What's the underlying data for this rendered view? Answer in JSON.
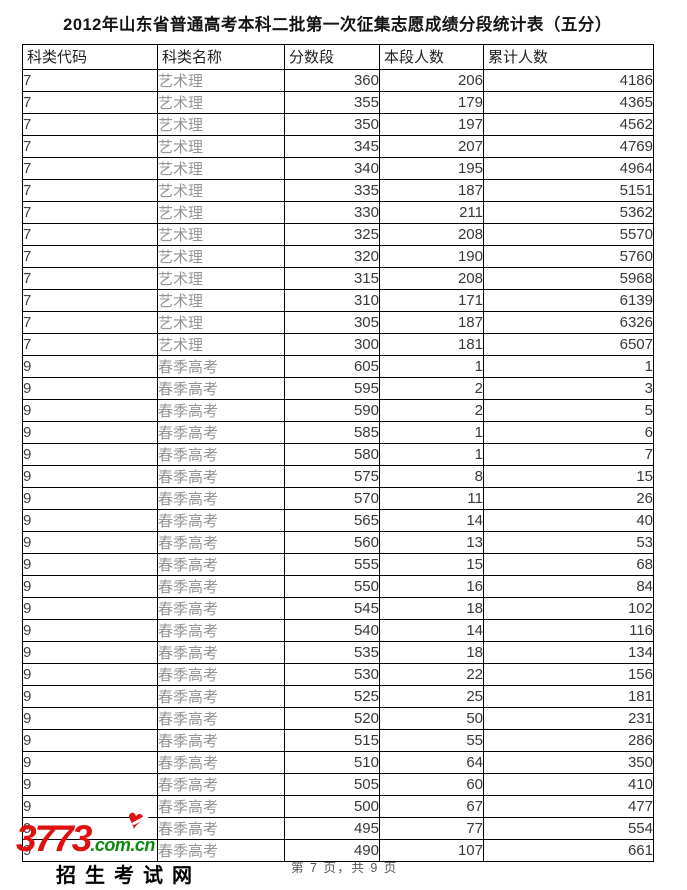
{
  "title": "2012年山东省普通高考本科二批第一次征集志愿成绩分段统计表（五分）",
  "table": {
    "headers": [
      "科类代码",
      "科类名称",
      "分数段",
      "本段人数",
      "累计人数"
    ],
    "rows": [
      [
        "7",
        "艺术理",
        "360",
        "206",
        "4186"
      ],
      [
        "7",
        "艺术理",
        "355",
        "179",
        "4365"
      ],
      [
        "7",
        "艺术理",
        "350",
        "197",
        "4562"
      ],
      [
        "7",
        "艺术理",
        "345",
        "207",
        "4769"
      ],
      [
        "7",
        "艺术理",
        "340",
        "195",
        "4964"
      ],
      [
        "7",
        "艺术理",
        "335",
        "187",
        "5151"
      ],
      [
        "7",
        "艺术理",
        "330",
        "211",
        "5362"
      ],
      [
        "7",
        "艺术理",
        "325",
        "208",
        "5570"
      ],
      [
        "7",
        "艺术理",
        "320",
        "190",
        "5760"
      ],
      [
        "7",
        "艺术理",
        "315",
        "208",
        "5968"
      ],
      [
        "7",
        "艺术理",
        "310",
        "171",
        "6139"
      ],
      [
        "7",
        "艺术理",
        "305",
        "187",
        "6326"
      ],
      [
        "7",
        "艺术理",
        "300",
        "181",
        "6507"
      ],
      [
        "9",
        "春季高考",
        "605",
        "1",
        "1"
      ],
      [
        "9",
        "春季高考",
        "595",
        "2",
        "3"
      ],
      [
        "9",
        "春季高考",
        "590",
        "2",
        "5"
      ],
      [
        "9",
        "春季高考",
        "585",
        "1",
        "6"
      ],
      [
        "9",
        "春季高考",
        "580",
        "1",
        "7"
      ],
      [
        "9",
        "春季高考",
        "575",
        "8",
        "15"
      ],
      [
        "9",
        "春季高考",
        "570",
        "11",
        "26"
      ],
      [
        "9",
        "春季高考",
        "565",
        "14",
        "40"
      ],
      [
        "9",
        "春季高考",
        "560",
        "13",
        "53"
      ],
      [
        "9",
        "春季高考",
        "555",
        "15",
        "68"
      ],
      [
        "9",
        "春季高考",
        "550",
        "16",
        "84"
      ],
      [
        "9",
        "春季高考",
        "545",
        "18",
        "102"
      ],
      [
        "9",
        "春季高考",
        "540",
        "14",
        "116"
      ],
      [
        "9",
        "春季高考",
        "535",
        "18",
        "134"
      ],
      [
        "9",
        "春季高考",
        "530",
        "22",
        "156"
      ],
      [
        "9",
        "春季高考",
        "525",
        "25",
        "181"
      ],
      [
        "9",
        "春季高考",
        "520",
        "50",
        "231"
      ],
      [
        "9",
        "春季高考",
        "515",
        "55",
        "286"
      ],
      [
        "9",
        "春季高考",
        "510",
        "64",
        "350"
      ],
      [
        "9",
        "春季高考",
        "505",
        "60",
        "410"
      ],
      [
        "9",
        "春季高考",
        "500",
        "67",
        "477"
      ],
      [
        "9",
        "春季高考",
        "495",
        "77",
        "554"
      ],
      [
        "9",
        "春季高考",
        "490",
        "107",
        "661"
      ]
    ]
  },
  "logo": {
    "number": "3773",
    "domain": ".com.cn",
    "site_name": "招生考试网",
    "heart_icon": "heart",
    "colors": {
      "number": "#e01010",
      "domain": "#0f8a0f",
      "site_name": "#000000"
    }
  },
  "footer": {
    "page_info": "第 7 页，共 9 页"
  }
}
